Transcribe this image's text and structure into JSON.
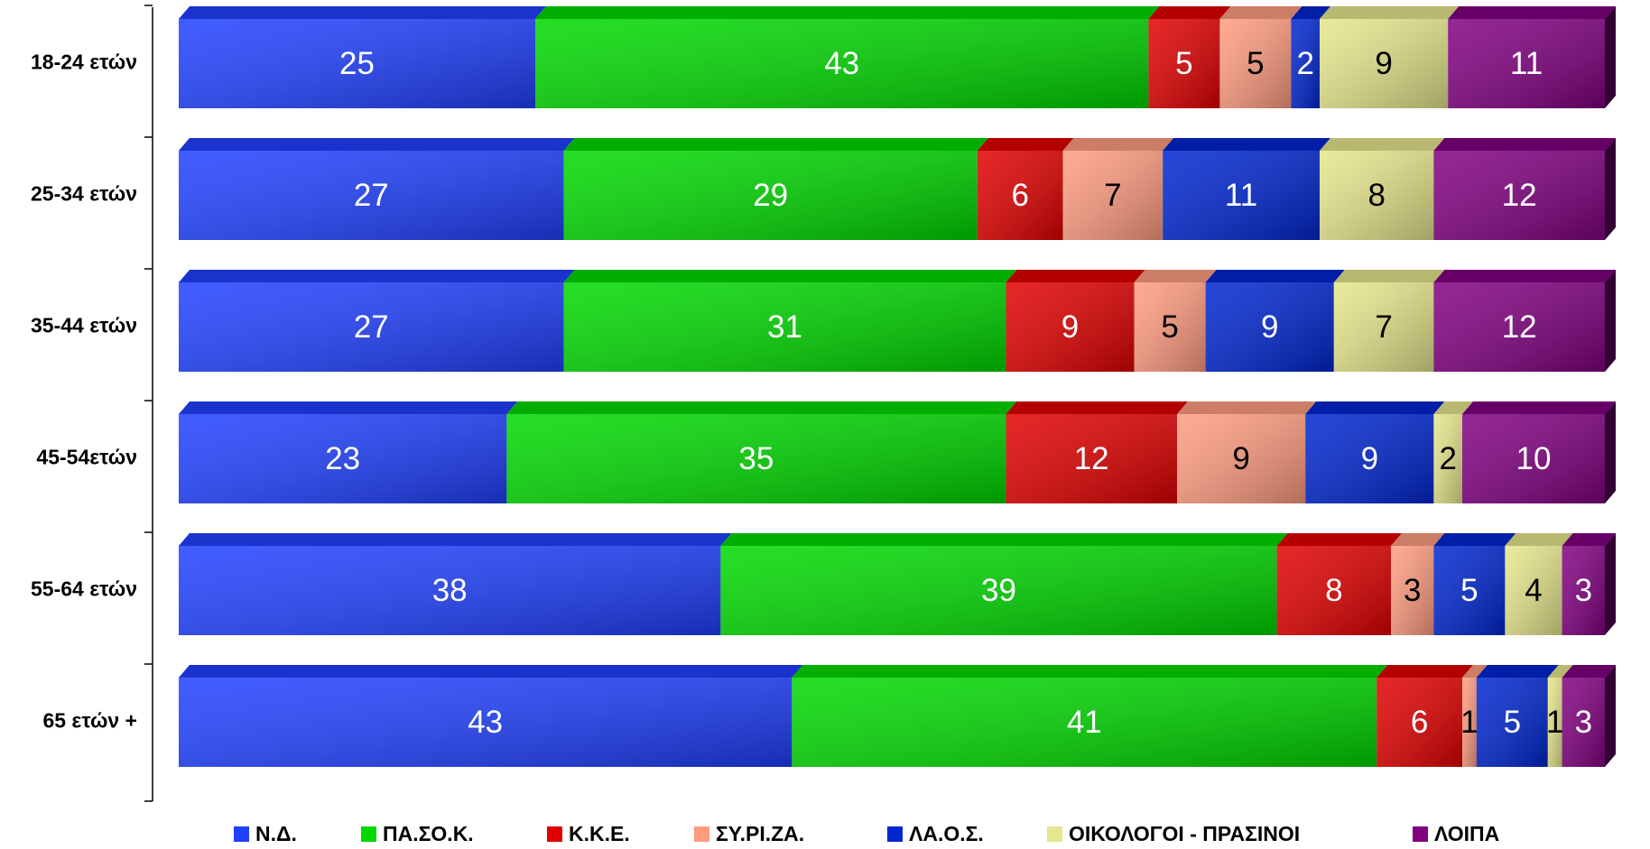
{
  "chart_data": {
    "type": "bar",
    "orientation": "horizontal",
    "stacked": true,
    "categories": [
      "18-24 ετών",
      "25-34 ετών",
      "35-44 ετών",
      "45-54ετών",
      "55-64 ετών",
      "65 ετών +"
    ],
    "series": [
      {
        "name": "Ν.Δ.",
        "color": "#2040ff",
        "values": [
          25,
          27,
          27,
          23,
          38,
          43
        ]
      },
      {
        "name": "ΠΑ.ΣΟ.Κ.",
        "color": "#00d800",
        "values": [
          43,
          29,
          31,
          35,
          39,
          41
        ]
      },
      {
        "name": "Κ.Κ.Ε.",
        "color": "#e00000",
        "values": [
          5,
          6,
          9,
          12,
          8,
          6
        ]
      },
      {
        "name": "ΣΥ.ΡΙ.ΖΑ.",
        "color": "#ff9c80",
        "values": [
          5,
          7,
          5,
          9,
          3,
          1
        ]
      },
      {
        "name": "ΛΑ.Ο.Σ.",
        "color": "#0026d0",
        "values": [
          2,
          11,
          9,
          9,
          5,
          5
        ]
      },
      {
        "name": "ΟΙΚΟΛΟΓΟΙ - ΠΡΑΣΙΝΟΙ",
        "color": "#e6e68c",
        "values": [
          9,
          8,
          7,
          2,
          4,
          1
        ]
      },
      {
        "name": "ΛΟΙΠΑ",
        "color": "#800080",
        "values": [
          11,
          12,
          12,
          10,
          3,
          3
        ]
      }
    ],
    "xlim": [
      0,
      100
    ],
    "grid": false,
    "legend": "bottom"
  }
}
